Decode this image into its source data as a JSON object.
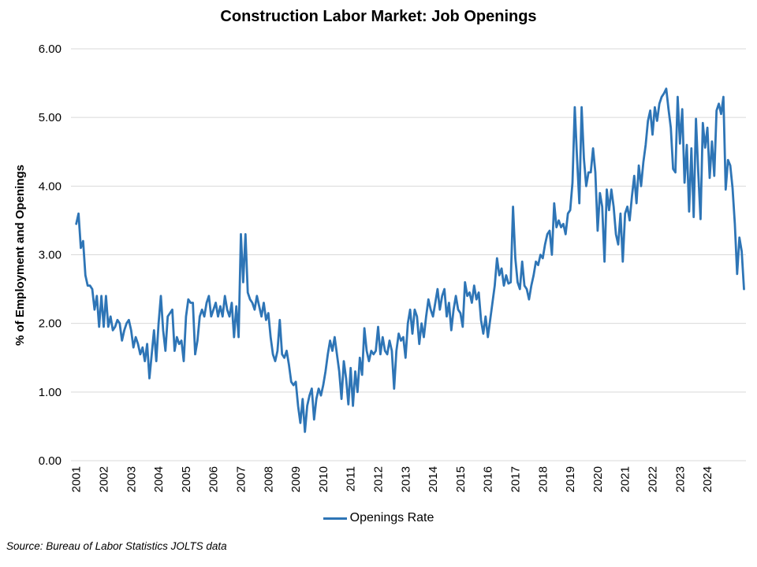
{
  "title": "Construction Labor Market: Job Openings",
  "source_note": "Source: Bureau of Labor Statistics JOLTS data",
  "legend": {
    "label": "Openings Rate"
  },
  "colors": {
    "line": "#2E75B6",
    "gridline": "#D9D9D9",
    "text": "#000000"
  },
  "chart_data": {
    "type": "line",
    "title": "Construction Labor Market: Job Openings",
    "xlabel": "",
    "ylabel": "% of Employment and Openings",
    "ylim": [
      0,
      6
    ],
    "ytick_step": 1,
    "ytick_decimals": 2,
    "grid": "horizontal",
    "legend_position": "bottom",
    "x_tick_labels": [
      "2001",
      "2002",
      "2003",
      "2004",
      "2005",
      "2006",
      "2007",
      "2008",
      "2009",
      "2010",
      "2011",
      "2012",
      "2013",
      "2014",
      "2015",
      "2016",
      "2017",
      "2018",
      "2019",
      "2020",
      "2021",
      "2022",
      "2023",
      "2024"
    ],
    "x_start": "2001-01",
    "frequency": "monthly",
    "series": [
      {
        "name": "Openings Rate",
        "values": [
          3.45,
          3.6,
          3.1,
          3.2,
          2.7,
          2.55,
          2.55,
          2.5,
          2.2,
          2.4,
          1.95,
          2.4,
          1.95,
          2.4,
          1.95,
          2.1,
          1.9,
          1.95,
          2.05,
          2.0,
          1.75,
          1.9,
          2.0,
          2.05,
          1.9,
          1.65,
          1.8,
          1.7,
          1.55,
          1.65,
          1.45,
          1.7,
          1.2,
          1.55,
          1.9,
          1.45,
          2.0,
          2.4,
          1.9,
          1.6,
          2.1,
          2.15,
          2.2,
          1.6,
          1.8,
          1.7,
          1.75,
          1.45,
          2.1,
          2.35,
          2.3,
          2.3,
          1.55,
          1.75,
          2.1,
          2.2,
          2.1,
          2.3,
          2.4,
          2.1,
          2.2,
          2.3,
          2.1,
          2.25,
          2.1,
          2.4,
          2.2,
          2.1,
          2.3,
          1.8,
          2.25,
          1.8,
          3.3,
          2.6,
          3.3,
          2.45,
          2.35,
          2.3,
          2.2,
          2.4,
          2.25,
          2.1,
          2.3,
          2.05,
          2.15,
          1.8,
          1.55,
          1.45,
          1.6,
          2.05,
          1.55,
          1.5,
          1.6,
          1.4,
          1.15,
          1.1,
          1.15,
          0.8,
          0.55,
          0.9,
          0.42,
          0.8,
          0.95,
          1.05,
          0.6,
          0.9,
          1.05,
          0.95,
          1.1,
          1.3,
          1.55,
          1.75,
          1.6,
          1.8,
          1.55,
          1.3,
          0.9,
          1.45,
          1.2,
          0.82,
          1.35,
          0.8,
          1.3,
          1.0,
          1.5,
          1.25,
          1.93,
          1.6,
          1.45,
          1.6,
          1.55,
          1.6,
          1.95,
          1.55,
          1.8,
          1.6,
          1.55,
          1.75,
          1.6,
          1.05,
          1.6,
          1.85,
          1.75,
          1.8,
          1.5,
          2.0,
          2.2,
          1.85,
          2.2,
          2.1,
          1.7,
          2.0,
          1.8,
          2.1,
          2.35,
          2.2,
          2.1,
          2.3,
          2.5,
          2.2,
          2.4,
          2.5,
          2.1,
          2.3,
          1.9,
          2.2,
          2.4,
          2.2,
          2.15,
          1.95,
          2.6,
          2.4,
          2.45,
          2.3,
          2.55,
          2.35,
          2.45,
          2.05,
          1.85,
          2.1,
          1.8,
          2.05,
          2.3,
          2.55,
          2.95,
          2.7,
          2.8,
          2.55,
          2.7,
          2.58,
          2.6,
          3.7,
          2.95,
          2.6,
          2.5,
          2.9,
          2.55,
          2.5,
          2.35,
          2.55,
          2.7,
          2.9,
          2.85,
          3.0,
          2.95,
          3.15,
          3.3,
          3.35,
          3.0,
          3.75,
          3.4,
          3.5,
          3.4,
          3.45,
          3.3,
          3.6,
          3.65,
          4.05,
          5.15,
          4.4,
          3.75,
          5.15,
          4.4,
          4.0,
          4.2,
          4.2,
          4.55,
          4.2,
          3.35,
          3.9,
          3.7,
          2.9,
          3.95,
          3.65,
          3.95,
          3.7,
          3.3,
          3.15,
          3.6,
          2.9,
          3.6,
          3.7,
          3.5,
          3.85,
          4.15,
          3.75,
          4.3,
          4.0,
          4.35,
          4.6,
          4.95,
          5.1,
          4.75,
          5.15,
          4.95,
          5.2,
          5.3,
          5.35,
          5.42,
          5.12,
          4.85,
          4.25,
          4.2,
          5.3,
          4.62,
          5.12,
          4.05,
          4.6,
          3.63,
          4.55,
          3.55,
          4.98,
          4.2,
          3.52,
          4.92,
          4.56,
          4.85,
          4.12,
          4.65,
          4.15,
          5.1,
          5.2,
          5.05,
          5.3,
          3.95,
          4.38,
          4.3,
          3.97,
          3.45,
          2.72,
          3.25,
          3.05,
          2.5
        ]
      }
    ]
  }
}
